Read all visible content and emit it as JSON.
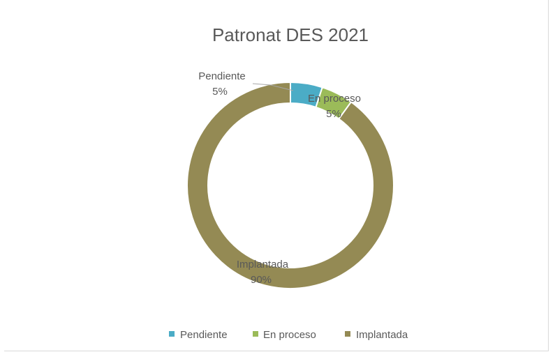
{
  "chart_data": {
    "type": "pie",
    "variant": "doughnut",
    "title": "Patronat DES 2021",
    "categories": [
      "Pendiente",
      "En proceso",
      "Implantada"
    ],
    "values": [
      5,
      5,
      90
    ],
    "value_labels": [
      "5%",
      "5%",
      "90%"
    ],
    "colors": [
      "#4bacc6",
      "#9bbb59",
      "#948a54"
    ],
    "legend": {
      "position": "bottom",
      "entries": [
        "Pendiente",
        "En proceso",
        "Implantada"
      ]
    },
    "start_angle_deg": 0,
    "direction": "clockwise"
  }
}
